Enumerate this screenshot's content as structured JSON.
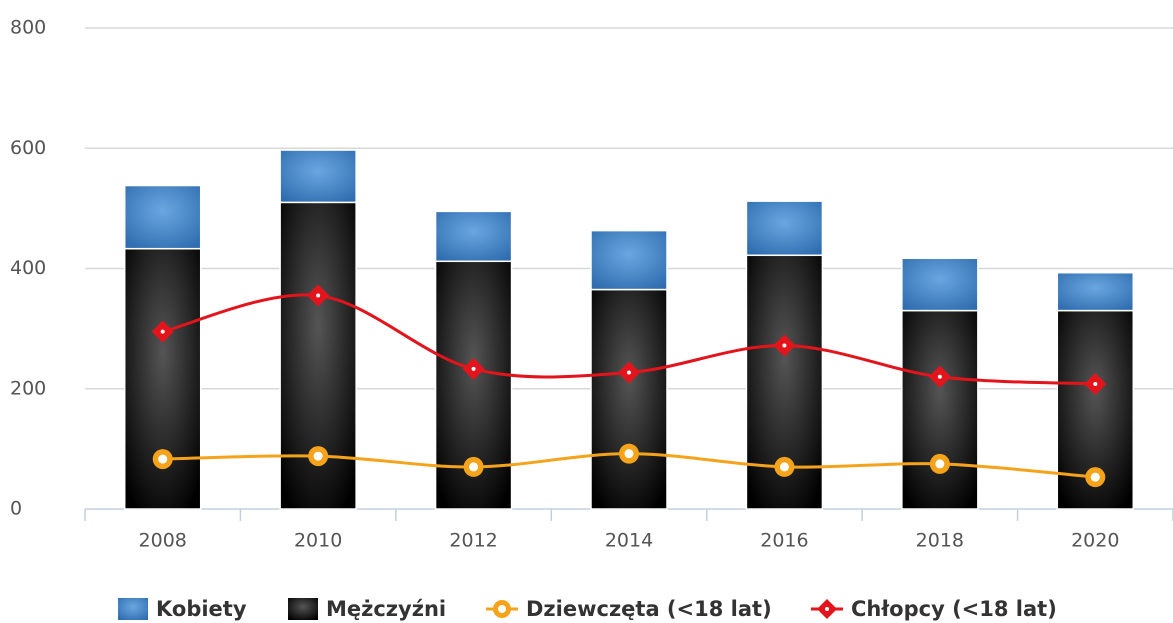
{
  "chart_data": {
    "type": "bar",
    "categories": [
      "2008",
      "2010",
      "2012",
      "2014",
      "2016",
      "2018",
      "2020"
    ],
    "series": [
      {
        "name": "Kobiety",
        "type": "bar",
        "color": "#3f7fc4",
        "values": [
          105,
          87,
          83,
          98,
          90,
          87,
          63
        ]
      },
      {
        "name": "Mężczyźni",
        "type": "bar",
        "color": "#111111",
        "values": [
          433,
          510,
          412,
          365,
          422,
          330,
          330
        ]
      },
      {
        "name": "Dziewczęta (<18 lat)",
        "type": "line",
        "color": "#f5a31a",
        "values": [
          83,
          88,
          70,
          92,
          70,
          75,
          53
        ]
      },
      {
        "name": "Chłopcy (<18 lat)",
        "type": "line",
        "color": "#e3141b",
        "values": [
          295,
          355,
          233,
          227,
          272,
          220,
          208
        ]
      }
    ],
    "ylim": [
      0,
      800
    ],
    "yticks": [
      0,
      200,
      400,
      600,
      800
    ],
    "grid": true,
    "legend": "bottom"
  }
}
